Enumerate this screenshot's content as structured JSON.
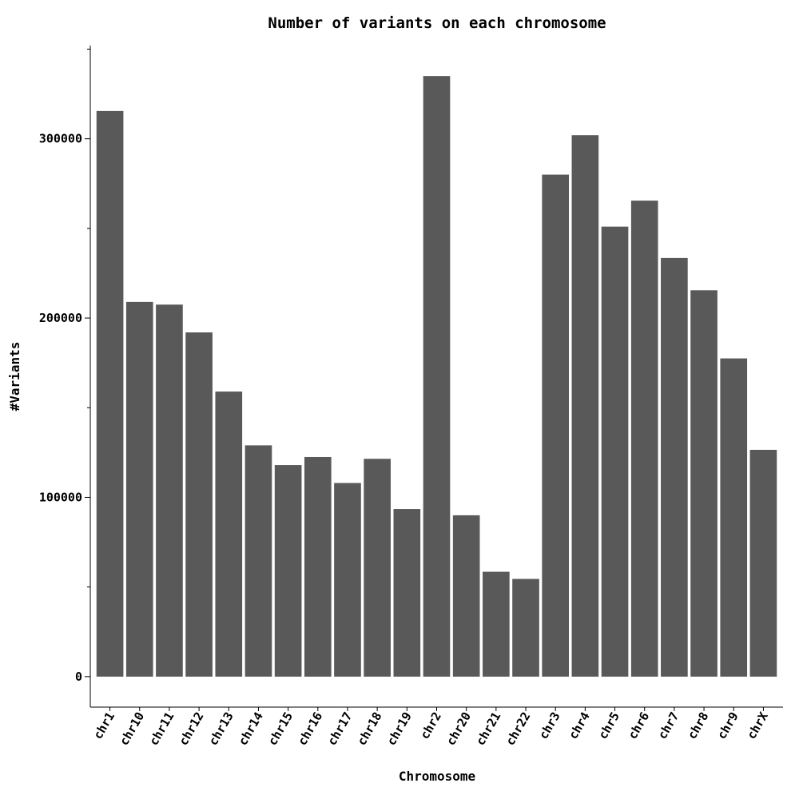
{
  "chart_data": {
    "type": "bar",
    "title": "Number of variants on each chromosome",
    "xlabel": "Chromosome",
    "ylabel": "#Variants",
    "categories": [
      "chr1",
      "chr10",
      "chr11",
      "chr12",
      "chr13",
      "chr14",
      "chr15",
      "chr16",
      "chr17",
      "chr18",
      "chr19",
      "chr2",
      "chr20",
      "chr21",
      "chr22",
      "chr3",
      "chr4",
      "chr5",
      "chr6",
      "chr7",
      "chr8",
      "chr9",
      "chrX"
    ],
    "values": [
      315500,
      209000,
      207500,
      192000,
      159000,
      129000,
      118000,
      122500,
      108000,
      121500,
      93500,
      335000,
      90000,
      58500,
      54500,
      280000,
      302000,
      251000,
      265500,
      233500,
      215500,
      177500,
      126500
    ],
    "ylim": [
      -17000,
      352000
    ],
    "yticks_major": [
      0,
      100000,
      200000,
      300000
    ],
    "yticks_major_labels": [
      "0",
      "100000",
      "200000",
      "300000"
    ],
    "yticks_minor": [
      50000,
      150000,
      250000,
      350000
    ],
    "bar_color": "#595959",
    "grid": false,
    "legend": "none"
  }
}
